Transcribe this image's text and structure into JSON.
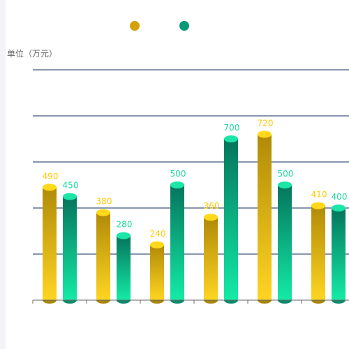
{
  "chart_data": {
    "type": "bar",
    "unit_label": "单位（万元）",
    "categories": [
      "",
      "",
      "",
      "",
      "",
      ""
    ],
    "series": [
      {
        "color": "#d4a10a",
        "values": [
          490,
          380,
          240,
          360,
          720,
          410
        ]
      },
      {
        "color": "#0a9a76",
        "values": [
          450,
          280,
          500,
          700,
          500,
          400
        ]
      }
    ],
    "ylim": [
      0,
      1000
    ],
    "gridlines": [
      200,
      400,
      600,
      800,
      1000
    ],
    "grid": true,
    "legend_position": "top-center"
  },
  "colors": {
    "series1_top": "#ffd91a",
    "series1_grad_top": "#b08a08",
    "series1_grad_bottom": "#ffd522",
    "series1_base": "#a98506",
    "series1_label": "#ffc90b",
    "series2_top": "#1be6a7",
    "series2_grad_top": "#05745c",
    "series2_grad_bottom": "#14eba6",
    "series2_base": "#0a8a6c",
    "series2_label": "#1fd9a0",
    "gridline": "#0d2e5a",
    "axis": "#666666"
  }
}
